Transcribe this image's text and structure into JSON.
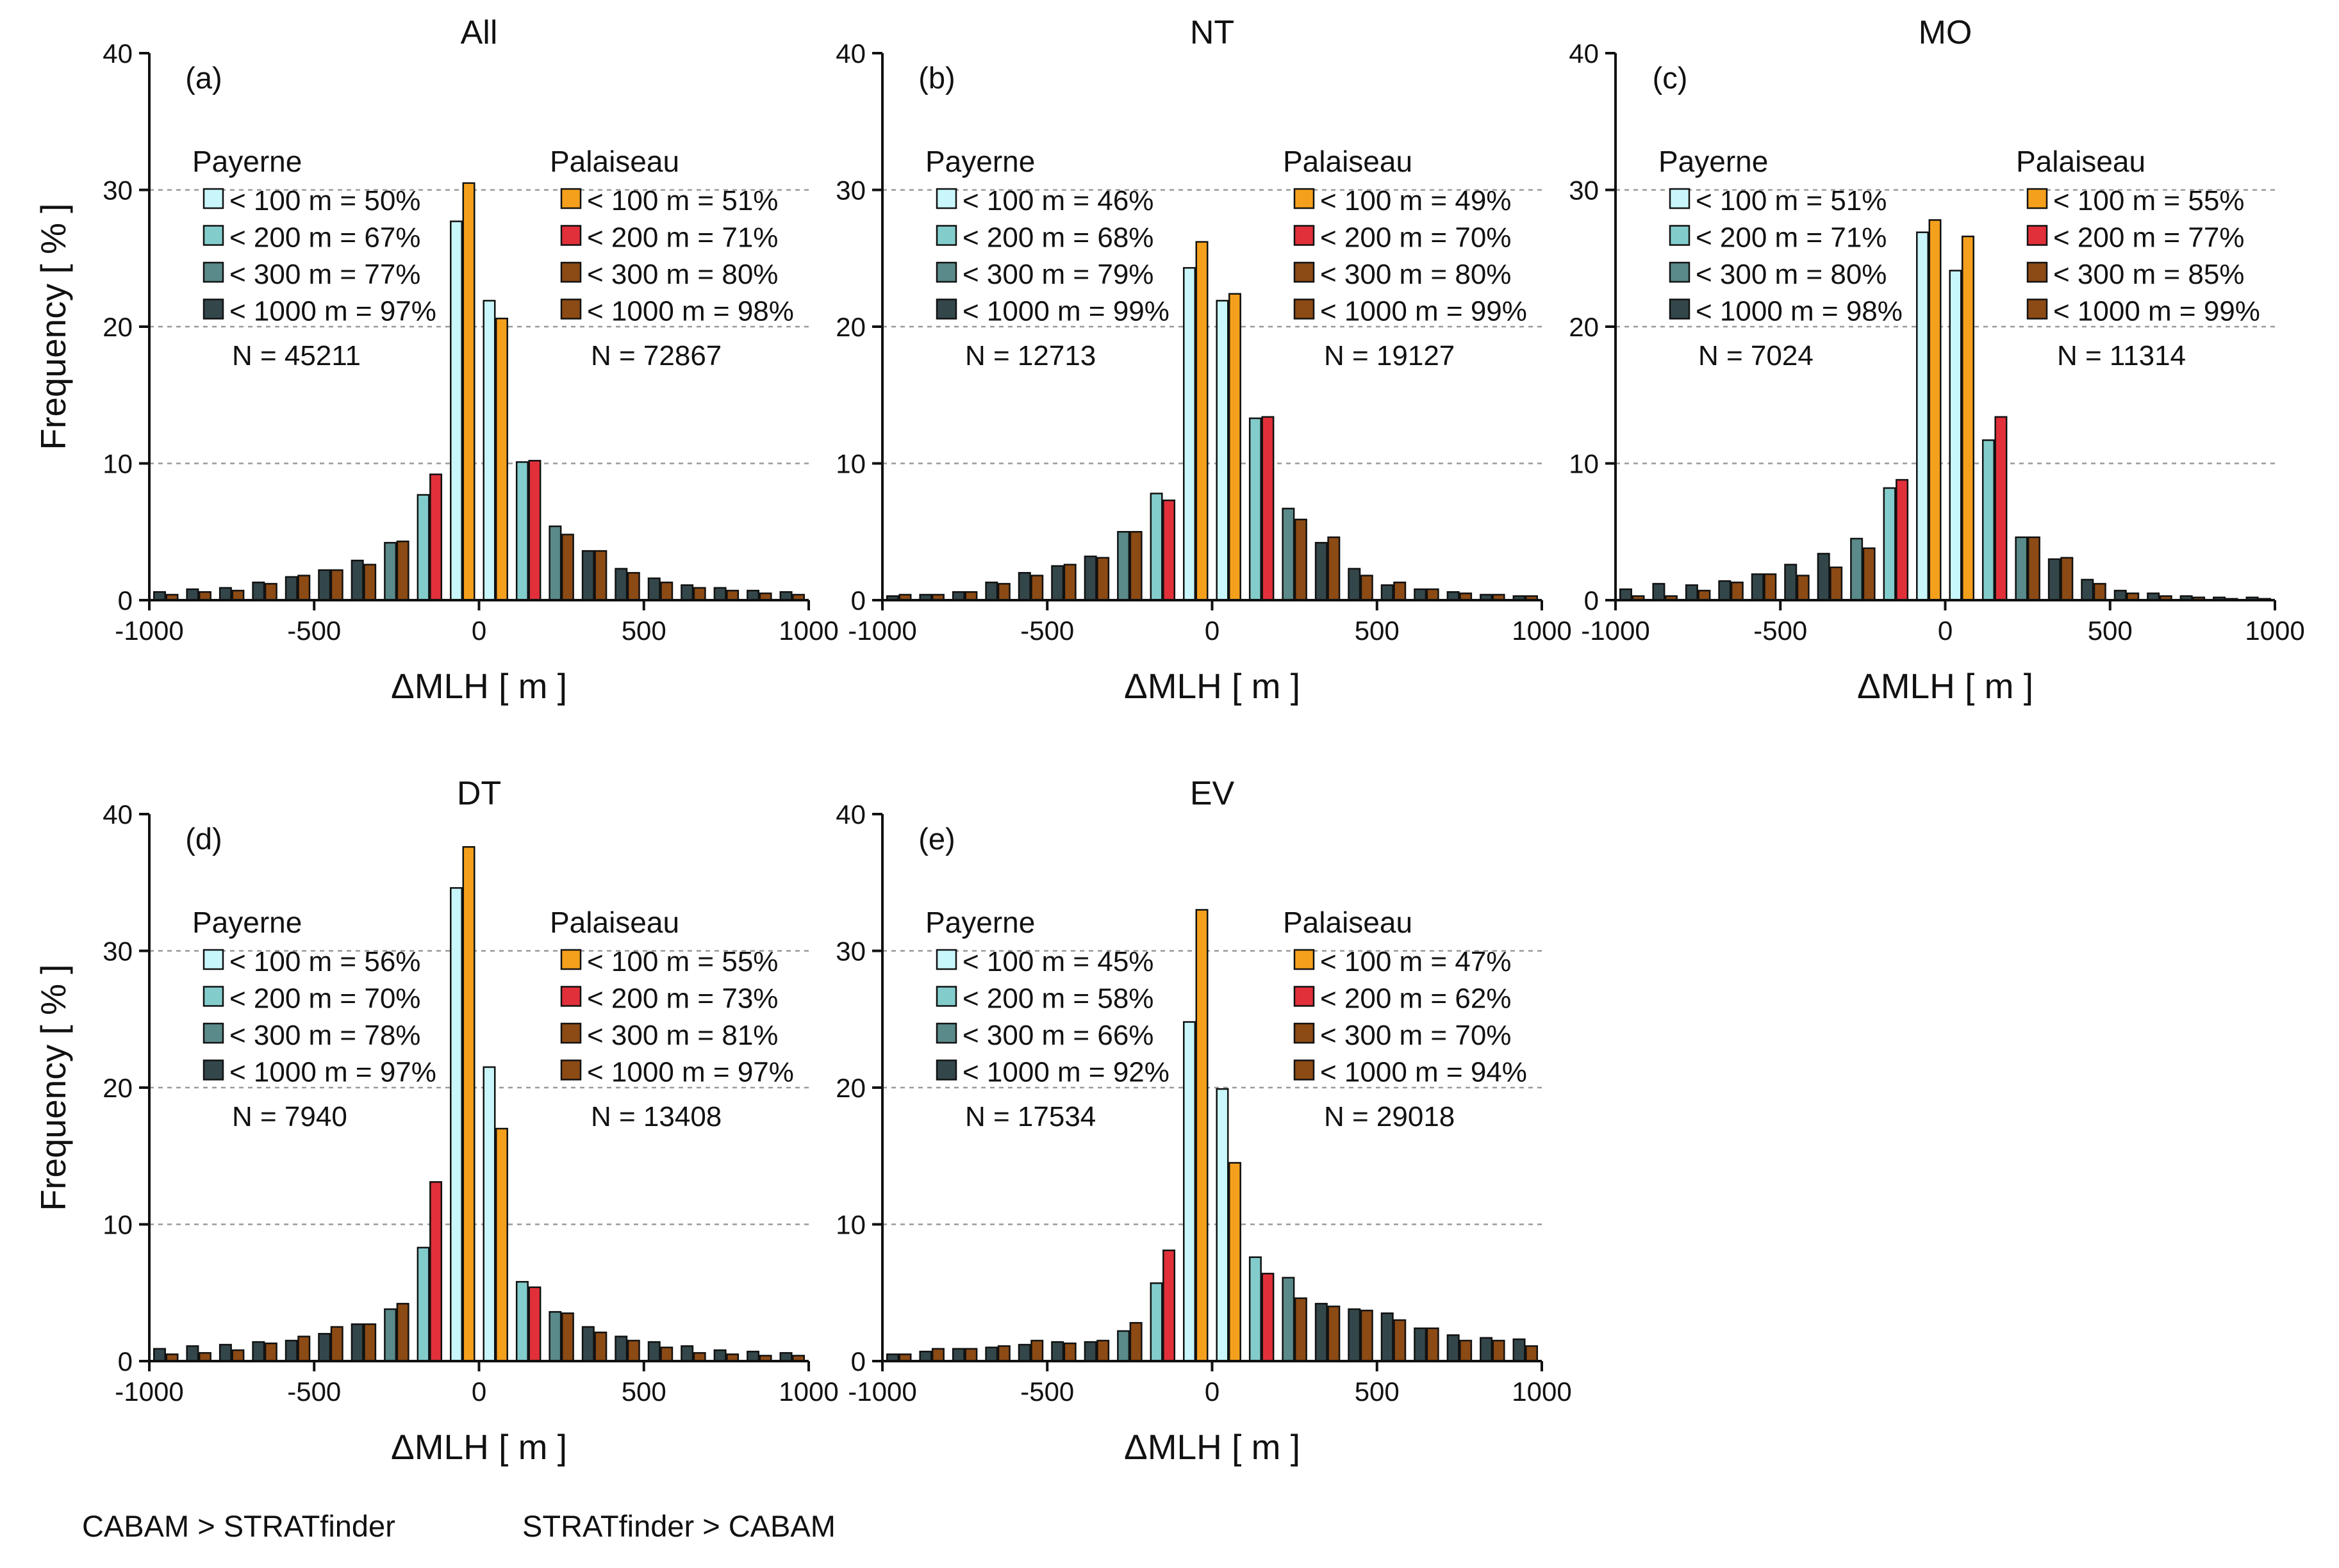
{
  "colors": {
    "pay_100": "#c8f6fa",
    "pay_200": "#83cccc",
    "pay_300": "#5a8a8a",
    "pay_1000": "#33474b",
    "pal_100": "#f5a01c",
    "pal_200": "#e1303a",
    "pal_300": "#8c4a14",
    "pal_1000": "#8c4a14"
  },
  "common": {
    "xlabel": "ΔMLH [ m ]",
    "ylabel": "Frequency [ % ]",
    "xlim": [
      -1000,
      1000
    ],
    "ylim": [
      0,
      40
    ],
    "xticks": [
      -1000,
      -500,
      0,
      500,
      1000
    ],
    "yticks": [
      0,
      10,
      20,
      30,
      40
    ],
    "gridlines": [
      10,
      20,
      30
    ],
    "bin_centers": [
      -950,
      -850,
      -750,
      -650,
      -550,
      -450,
      -350,
      -250,
      -150,
      -50,
      50,
      150,
      250,
      350,
      450,
      550,
      650,
      750,
      850,
      950
    ],
    "legend_titles": [
      "Payerne",
      "Palaiseau"
    ]
  },
  "notes": [
    "CABAM > STRATfinder",
    "STRATfinder > CABAM"
  ],
  "chart_data": [
    {
      "type": "bar",
      "title": "All",
      "label": "(a)",
      "series": [
        {
          "name": "Payerne",
          "values": [
            0.6,
            0.8,
            0.9,
            1.3,
            1.7,
            2.2,
            2.9,
            4.2,
            7.7,
            27.7,
            21.9,
            10.1,
            5.4,
            3.6,
            2.3,
            1.6,
            1.1,
            0.9,
            0.7,
            0.6
          ]
        },
        {
          "name": "Palaiseau",
          "values": [
            0.4,
            0.6,
            0.7,
            1.2,
            1.8,
            2.2,
            2.6,
            4.3,
            9.2,
            30.5,
            20.6,
            10.2,
            4.8,
            3.6,
            2.0,
            1.3,
            0.9,
            0.7,
            0.5,
            0.4
          ]
        }
      ],
      "legend": {
        "payerne": [
          "< 100 m = 50%",
          "< 200 m = 67%",
          "< 300 m = 77%",
          "< 1000 m = 97%"
        ],
        "palaiseau": [
          "< 100 m = 51%",
          "< 200 m = 71%",
          "< 300 m = 80%",
          "< 1000 m = 98%"
        ],
        "n_payerne": "N = 45211",
        "n_palaiseau": "N = 72867"
      }
    },
    {
      "type": "bar",
      "title": "NT",
      "label": "(b)",
      "series": [
        {
          "name": "Payerne",
          "values": [
            0.3,
            0.4,
            0.6,
            1.3,
            2.0,
            2.5,
            3.2,
            5.0,
            7.8,
            24.3,
            21.9,
            13.3,
            6.7,
            4.2,
            2.3,
            1.1,
            0.8,
            0.6,
            0.4,
            0.3
          ]
        },
        {
          "name": "Palaiseau",
          "values": [
            0.4,
            0.4,
            0.6,
            1.2,
            1.8,
            2.6,
            3.1,
            5.0,
            7.3,
            26.2,
            22.4,
            13.4,
            5.9,
            4.6,
            1.8,
            1.3,
            0.8,
            0.5,
            0.4,
            0.3
          ]
        }
      ],
      "legend": {
        "payerne": [
          "< 100 m = 46%",
          "< 200 m = 68%",
          "< 300 m = 79%",
          "< 1000 m = 99%"
        ],
        "palaiseau": [
          "< 100 m = 49%",
          "< 200 m = 70%",
          "< 300 m = 80%",
          "< 1000 m = 99%"
        ],
        "n_payerne": "N = 12713",
        "n_palaiseau": "N = 19127"
      }
    },
    {
      "type": "bar",
      "title": "MO",
      "label": "(c)",
      "series": [
        {
          "name": "Payerne",
          "values": [
            0.8,
            1.2,
            1.1,
            1.4,
            1.9,
            2.6,
            3.4,
            4.5,
            8.2,
            26.9,
            24.1,
            11.7,
            4.6,
            3.0,
            1.5,
            0.7,
            0.5,
            0.3,
            0.2,
            0.2
          ]
        },
        {
          "name": "Palaiseau",
          "values": [
            0.3,
            0.3,
            0.7,
            1.3,
            1.9,
            1.8,
            2.4,
            3.8,
            8.8,
            27.8,
            26.6,
            13.4,
            4.6,
            3.1,
            1.2,
            0.5,
            0.3,
            0.2,
            0.1,
            0.1
          ]
        }
      ],
      "legend": {
        "payerne": [
          "< 100 m = 51%",
          "< 200 m = 71%",
          "< 300 m = 80%",
          "< 1000 m = 98%"
        ],
        "palaiseau": [
          "< 100 m = 55%",
          "< 200 m = 77%",
          "< 300 m = 85%",
          "< 1000 m = 99%"
        ],
        "n_payerne": "N = 7024",
        "n_palaiseau": "N = 11314"
      }
    },
    {
      "type": "bar",
      "title": "DT",
      "label": "(d)",
      "series": [
        {
          "name": "Payerne",
          "values": [
            0.9,
            1.1,
            1.2,
            1.4,
            1.5,
            2.0,
            2.7,
            3.8,
            8.3,
            34.6,
            21.5,
            5.8,
            3.6,
            2.5,
            1.8,
            1.4,
            1.1,
            0.8,
            0.7,
            0.6
          ]
        },
        {
          "name": "Palaiseau",
          "values": [
            0.5,
            0.6,
            0.8,
            1.3,
            1.8,
            2.5,
            2.7,
            4.2,
            13.1,
            37.6,
            17.0,
            5.4,
            3.5,
            2.1,
            1.5,
            1.0,
            0.6,
            0.5,
            0.4,
            0.4
          ]
        }
      ],
      "legend": {
        "payerne": [
          "< 100 m = 56%",
          "< 200 m = 70%",
          "< 300 m = 78%",
          "< 1000 m = 97%"
        ],
        "palaiseau": [
          "< 100 m = 55%",
          "< 200 m = 73%",
          "< 300 m = 81%",
          "< 1000 m = 97%"
        ],
        "n_payerne": "N = 7940",
        "n_palaiseau": "N = 13408"
      }
    },
    {
      "type": "bar",
      "title": "EV",
      "label": "(e)",
      "series": [
        {
          "name": "Payerne",
          "values": [
            0.5,
            0.7,
            0.9,
            1.0,
            1.2,
            1.4,
            1.4,
            2.2,
            5.7,
            24.8,
            19.9,
            7.6,
            6.1,
            4.2,
            3.8,
            3.5,
            2.4,
            1.9,
            1.7,
            1.6
          ]
        },
        {
          "name": "Palaiseau",
          "values": [
            0.5,
            0.9,
            0.9,
            1.1,
            1.5,
            1.3,
            1.5,
            2.8,
            8.1,
            33.0,
            14.5,
            6.4,
            4.6,
            4.0,
            3.7,
            3.0,
            2.4,
            1.5,
            1.5,
            1.1
          ]
        }
      ],
      "legend": {
        "payerne": [
          "< 100 m = 45%",
          "< 200 m = 58%",
          "< 300 m = 66%",
          "< 1000 m = 92%"
        ],
        "palaiseau": [
          "< 100 m = 47%",
          "< 200 m = 62%",
          "< 300 m = 70%",
          "< 1000 m = 94%"
        ],
        "n_payerne": "N = 17534",
        "n_palaiseau": "N = 29018"
      }
    }
  ]
}
